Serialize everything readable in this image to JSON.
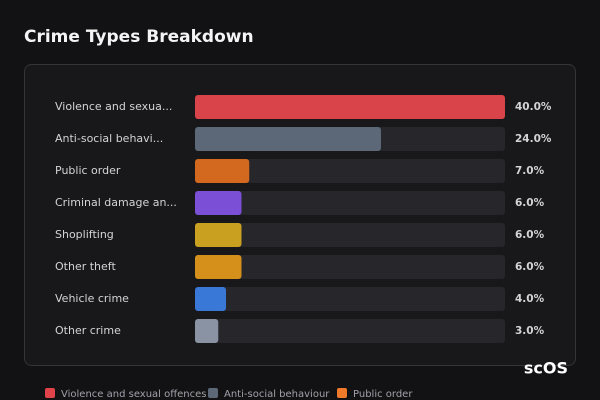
{
  "chart_data": {
    "type": "hbar",
    "title": "Crime Types Breakdown",
    "categories": [
      "Violence and sexua...",
      "Anti-social behavi...",
      "Public order",
      "Criminal damage an...",
      "Shoplifting",
      "Other theft",
      "Vehicle crime",
      "Other crime"
    ],
    "values": [
      40,
      24,
      7,
      6,
      6,
      6,
      4,
      3
    ],
    "value_labels": [
      "40.0%",
      "24.0%",
      "7.0%",
      "6.0%",
      "6.0%",
      "6.0%",
      "4.0%",
      "3.0%"
    ],
    "colors": [
      "#d9434a",
      "#5c6878",
      "#d2691e",
      "#7b4fd6",
      "#c9a020",
      "#d4901a",
      "#3a78d8",
      "#8a93a3"
    ],
    "legend": [
      {
        "name": "Violence and sexual offences",
        "color": "#e0434a"
      },
      {
        "name": "Anti-social behaviour",
        "color": "#5c6878"
      },
      {
        "name": "Public order",
        "color": "#f07a2a"
      }
    ]
  },
  "watermark": "scOS"
}
